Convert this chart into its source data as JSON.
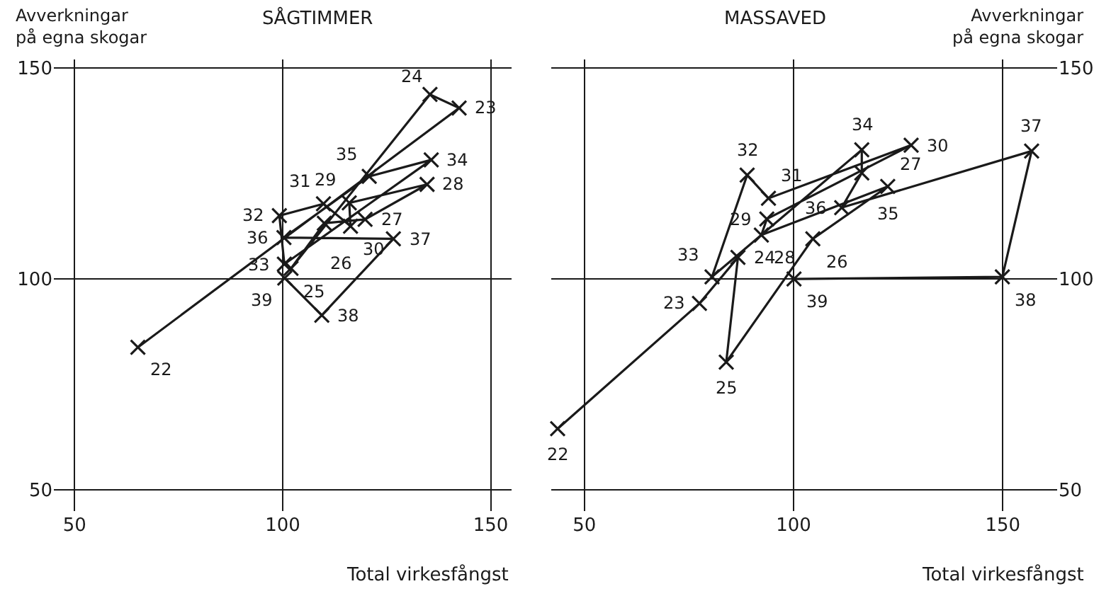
{
  "chart_data": [
    {
      "type": "line",
      "title": "SÅGTIMMER",
      "xlabel": "Total virkesfångst",
      "ylabel": "Avverkningar\npå egna skogar",
      "x": [
        65.2,
        142.4,
        135.4,
        102,
        110,
        119.8,
        134.7,
        116,
        116.3,
        109.8,
        99.2,
        100.4,
        135.7,
        120.8,
        100.3,
        126.6,
        109.4,
        100.5
      ],
      "series": [
        {
          "color": "#1a1a1a",
          "values": [
            83.8,
            140.5,
            143.7,
            102.5,
            113.2,
            114.1,
            122.4,
            118,
            112.5,
            117.8,
            115,
            103.5,
            128.2,
            124.3,
            109.8,
            109.5,
            91.4,
            100.2
          ]
        }
      ],
      "annotations": [
        {
          "text": "22",
          "x": 65.2,
          "y": 83.8
        },
        {
          "text": "23",
          "x": 142.4,
          "y": 140.5
        },
        {
          "text": "24",
          "x": 135.4,
          "y": 143.7
        },
        {
          "text": "25",
          "x": 102,
          "y": 102.5
        },
        {
          "text": "26",
          "x": 110,
          "y": 113.2
        },
        {
          "text": "27",
          "x": 119.8,
          "y": 114.1
        },
        {
          "text": "28",
          "x": 134.7,
          "y": 122.4
        },
        {
          "text": "29",
          "x": 116,
          "y": 118
        },
        {
          "text": "30",
          "x": 116.3,
          "y": 112.5
        },
        {
          "text": "31",
          "x": 109.8,
          "y": 117.8
        },
        {
          "text": "32",
          "x": 99.2,
          "y": 115
        },
        {
          "text": "33",
          "x": 100.4,
          "y": 103.5
        },
        {
          "text": "34",
          "x": 135.7,
          "y": 128.2
        },
        {
          "text": "35",
          "x": 120.8,
          "y": 124.3
        },
        {
          "text": "36",
          "x": 100.3,
          "y": 109.8
        },
        {
          "text": "37",
          "x": 126.6,
          "y": 109.5
        },
        {
          "text": "38",
          "x": 109.4,
          "y": 91.4
        },
        {
          "text": "39",
          "x": 100.5,
          "y": 100.2
        }
      ],
      "marker": "cross",
      "line_style": "solid",
      "grid": true,
      "xlim": [
        45,
        155
      ],
      "ylim": [
        45,
        152
      ],
      "xticks": [
        50,
        100,
        150
      ],
      "yticks": [
        50,
        100,
        150
      ]
    },
    {
      "type": "line",
      "title": "MASSAVED",
      "xlabel": "Total virkesfångst",
      "ylabel": "Avverkningar\npå egna skogar",
      "x": [
        43.6,
        77.5,
        86.7,
        83.9,
        104.6,
        122.5,
        92.3,
        93.6,
        128.1,
        94,
        88.9,
        80.5,
        116.3,
        116.3,
        111.5,
        156.9,
        149.9,
        100.1
      ],
      "series": [
        {
          "color": "#1a1a1a",
          "values": [
            64.5,
            94.2,
            105.1,
            80.3,
            109.5,
            121.9,
            110.4,
            114.2,
            131.7,
            119.1,
            124.6,
            100.5,
            130.6,
            125.1,
            116.9,
            130.3,
            100.5,
            100
          ]
        }
      ],
      "annotations": [
        {
          "text": "22",
          "x": 43.6,
          "y": 64.5
        },
        {
          "text": "23",
          "x": 77.5,
          "y": 94.2
        },
        {
          "text": "24",
          "x": 86.7,
          "y": 105.1
        },
        {
          "text": "25",
          "x": 83.9,
          "y": 80.3
        },
        {
          "text": "26",
          "x": 104.6,
          "y": 109.5
        },
        {
          "text": "27",
          "x": 122.5,
          "y": 121.9
        },
        {
          "text": "28",
          "x": 92.3,
          "y": 110.4
        },
        {
          "text": "29",
          "x": 93.6,
          "y": 114.2
        },
        {
          "text": "30",
          "x": 128.1,
          "y": 131.7
        },
        {
          "text": "31",
          "x": 94,
          "y": 119.1
        },
        {
          "text": "32",
          "x": 88.9,
          "y": 124.6
        },
        {
          "text": "33",
          "x": 80.5,
          "y": 100.5
        },
        {
          "text": "34",
          "x": 116.3,
          "y": 130.6
        },
        {
          "text": "35",
          "x": 116.3,
          "y": 125.1
        },
        {
          "text": "36",
          "x": 111.5,
          "y": 116.9
        },
        {
          "text": "37",
          "x": 156.9,
          "y": 130.3
        },
        {
          "text": "38",
          "x": 149.9,
          "y": 100.5
        },
        {
          "text": "39",
          "x": 100.1,
          "y": 100
        }
      ],
      "marker": "cross",
      "line_style": "solid",
      "grid": true,
      "xlim": [
        42,
        163
      ],
      "ylim": [
        45,
        152
      ],
      "xticks": [
        50,
        100,
        150
      ],
      "yticks": [
        50,
        100,
        150
      ]
    }
  ]
}
